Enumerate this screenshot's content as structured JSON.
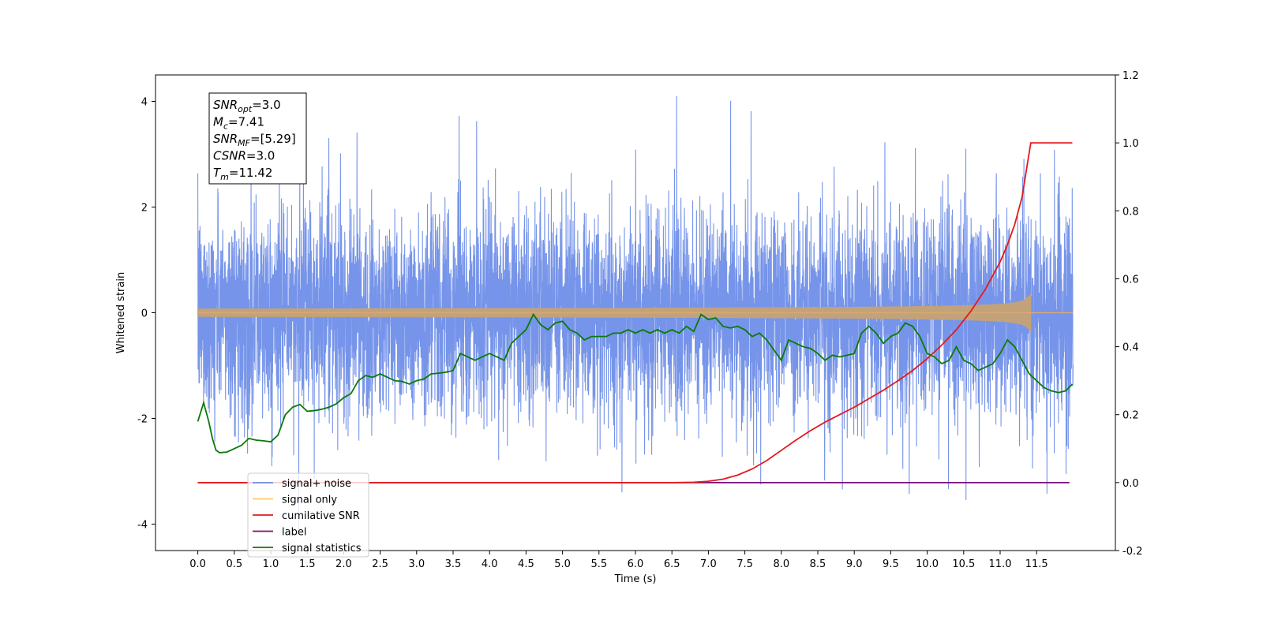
{
  "chart_data": {
    "type": "line",
    "title": "",
    "xlabel": "Time (s)",
    "ylabel_left": "Whitened strain",
    "ylabel_right": "",
    "xlim": [
      -0.58,
      12.58
    ],
    "ylim_left": [
      -4.5,
      4.5
    ],
    "ylim_right": [
      -0.2,
      1.2
    ],
    "x_ticks": [
      "0.0",
      "0.5",
      "1.0",
      "1.5",
      "2.0",
      "2.5",
      "3.0",
      "3.5",
      "4.0",
      "4.5",
      "5.0",
      "5.5",
      "6.0",
      "6.5",
      "7.0",
      "7.5",
      "8.0",
      "8.5",
      "9.0",
      "9.5",
      "10.0",
      "10.5",
      "11.0",
      "11.5"
    ],
    "y_ticks_left": [
      -4,
      -2,
      0,
      2,
      4
    ],
    "y_ticks_right": [
      "-0.2",
      "0.0",
      "0.2",
      "0.4",
      "0.6",
      "0.8",
      "1.0",
      "1.2"
    ],
    "annotation": {
      "lines": [
        {
          "main": "SNR",
          "sub": "opt",
          "rest": "=3.0"
        },
        {
          "main": "M",
          "sub": "c",
          "rest": "=7.41"
        },
        {
          "main": "SNR",
          "sub": "MF",
          "rest": "=[5.29]"
        },
        {
          "main": "CSNR",
          "sub": "",
          "rest": "=3.0"
        },
        {
          "main": "T",
          "sub": "m",
          "rest": "=11.42"
        }
      ]
    },
    "legend_position": "lower-left",
    "series": [
      {
        "name": "signal+ noise",
        "axis": "left",
        "color": "#6f8ee8",
        "kind": "noise",
        "x_range": [
          0.0,
          12.0
        ],
        "sigma": 1.0,
        "y_range": [
          -4.1,
          4.1
        ]
      },
      {
        "name": "signal only",
        "axis": "left",
        "color": "#f5c26b",
        "kind": "chirp",
        "x_range": [
          0.0,
          11.42
        ],
        "max_amplitude": 0.35
      },
      {
        "name": "cumilative SNR",
        "axis": "right",
        "color": "#e31a1c",
        "x": [
          0.0,
          6.5,
          6.8,
          7.0,
          7.2,
          7.4,
          7.6,
          7.8,
          8.0,
          8.2,
          8.4,
          8.6,
          8.8,
          9.0,
          9.2,
          9.4,
          9.6,
          9.8,
          10.0,
          10.2,
          10.4,
          10.6,
          10.8,
          11.0,
          11.1,
          11.2,
          11.3,
          11.42,
          11.6,
          11.8,
          11.99
        ],
        "y": [
          0.0,
          0.0,
          0.001,
          0.004,
          0.01,
          0.022,
          0.04,
          0.065,
          0.095,
          0.125,
          0.153,
          0.178,
          0.2,
          0.222,
          0.247,
          0.272,
          0.3,
          0.33,
          0.365,
          0.405,
          0.45,
          0.505,
          0.57,
          0.65,
          0.7,
          0.76,
          0.84,
          1.0,
          1.0,
          1.0,
          1.0
        ]
      },
      {
        "name": "label",
        "axis": "right",
        "color": "#7b0f7b",
        "x": [
          0.0,
          11.95
        ],
        "y": [
          0.0,
          0.0
        ]
      },
      {
        "name": "signal statistics",
        "axis": "right",
        "color": "#0a7a0a",
        "x": [
          0.0,
          0.08,
          0.15,
          0.2,
          0.25,
          0.3,
          0.4,
          0.5,
          0.6,
          0.7,
          0.8,
          0.9,
          1.0,
          1.1,
          1.2,
          1.3,
          1.4,
          1.5,
          1.6,
          1.7,
          1.8,
          1.9,
          2.0,
          2.1,
          2.2,
          2.3,
          2.4,
          2.5,
          2.6,
          2.7,
          2.8,
          2.9,
          3.0,
          3.1,
          3.2,
          3.3,
          3.4,
          3.5,
          3.6,
          3.7,
          3.8,
          3.9,
          4.0,
          4.1,
          4.2,
          4.3,
          4.4,
          4.5,
          4.6,
          4.7,
          4.8,
          4.9,
          5.0,
          5.1,
          5.2,
          5.3,
          5.4,
          5.5,
          5.6,
          5.7,
          5.8,
          5.9,
          6.0,
          6.1,
          6.2,
          6.3,
          6.4,
          6.5,
          6.6,
          6.7,
          6.8,
          6.9,
          7.0,
          7.1,
          7.2,
          7.3,
          7.4,
          7.5,
          7.6,
          7.7,
          7.8,
          7.9,
          8.0,
          8.1,
          8.2,
          8.3,
          8.4,
          8.5,
          8.6,
          8.7,
          8.8,
          8.9,
          9.0,
          9.1,
          9.2,
          9.3,
          9.4,
          9.5,
          9.6,
          9.7,
          9.8,
          9.9,
          10.0,
          10.1,
          10.2,
          10.3,
          10.4,
          10.5,
          10.6,
          10.7,
          10.8,
          10.9,
          11.0,
          11.1,
          11.2,
          11.3,
          11.4,
          11.5,
          11.6,
          11.7,
          11.8,
          11.9,
          11.99
        ],
        "y": [
          0.18,
          0.235,
          0.18,
          0.13,
          0.095,
          0.088,
          0.09,
          0.1,
          0.11,
          0.13,
          0.125,
          0.123,
          0.12,
          0.14,
          0.2,
          0.222,
          0.23,
          0.21,
          0.212,
          0.216,
          0.222,
          0.232,
          0.25,
          0.262,
          0.3,
          0.315,
          0.31,
          0.32,
          0.31,
          0.3,
          0.298,
          0.29,
          0.3,
          0.305,
          0.32,
          0.322,
          0.325,
          0.33,
          0.38,
          0.37,
          0.36,
          0.37,
          0.38,
          0.37,
          0.36,
          0.41,
          0.43,
          0.45,
          0.495,
          0.465,
          0.45,
          0.47,
          0.475,
          0.45,
          0.44,
          0.42,
          0.43,
          0.43,
          0.43,
          0.44,
          0.44,
          0.45,
          0.44,
          0.45,
          0.44,
          0.45,
          0.44,
          0.45,
          0.44,
          0.46,
          0.445,
          0.495,
          0.48,
          0.485,
          0.46,
          0.455,
          0.46,
          0.45,
          0.43,
          0.44,
          0.42,
          0.39,
          0.36,
          0.42,
          0.41,
          0.4,
          0.395,
          0.38,
          0.36,
          0.375,
          0.37,
          0.375,
          0.38,
          0.44,
          0.46,
          0.44,
          0.41,
          0.43,
          0.44,
          0.47,
          0.46,
          0.43,
          0.38,
          0.37,
          0.35,
          0.36,
          0.4,
          0.36,
          0.35,
          0.33,
          0.34,
          0.35,
          0.38,
          0.42,
          0.4,
          0.36,
          0.32,
          0.3,
          0.28,
          0.27,
          0.265,
          0.27,
          0.29
        ]
      }
    ]
  }
}
